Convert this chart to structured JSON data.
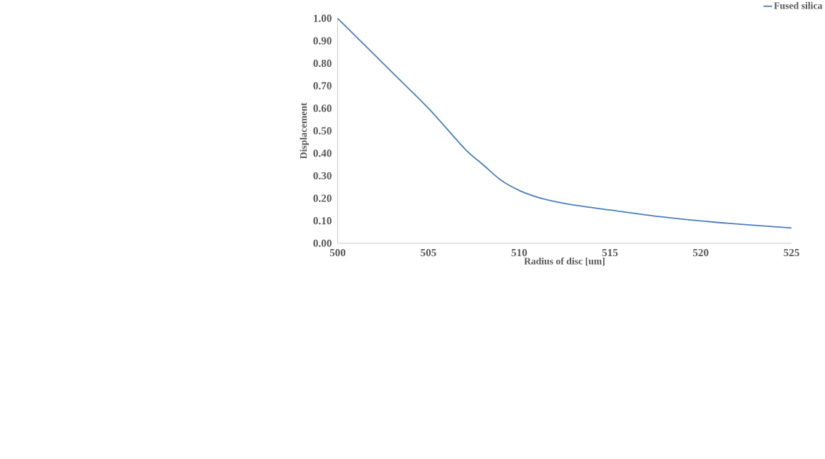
{
  "chart_data": {
    "type": "line",
    "xlabel": "Radius of disc [um]",
    "ylabel": "Displacement",
    "x": [
      500,
      501,
      503,
      505,
      507,
      508,
      509,
      510,
      511,
      512,
      513,
      515,
      518,
      521,
      525
    ],
    "series": [
      {
        "name": "Fused silica",
        "color": "#4a7ebb",
        "values": [
          1.0,
          0.92,
          0.76,
          0.6,
          0.42,
          0.35,
          0.28,
          0.235,
          0.205,
          0.185,
          0.17,
          0.148,
          0.116,
          0.092,
          0.068
        ]
      }
    ],
    "xlim": [
      500,
      525
    ],
    "xticks": [
      500,
      505,
      510,
      515,
      520,
      525
    ],
    "ylim": [
      0,
      1
    ],
    "yticks": [
      {
        "value": 0,
        "label": "0.00"
      },
      {
        "value": 0.1,
        "label": "0.10"
      },
      {
        "value": 0.2,
        "label": "0.20"
      },
      {
        "value": 0.3,
        "label": "0.30"
      },
      {
        "value": 0.4,
        "label": "0.40"
      },
      {
        "value": 0.5,
        "label": "0.50"
      },
      {
        "value": 0.6,
        "label": "0.60"
      },
      {
        "value": 0.7,
        "label": "0.70"
      },
      {
        "value": 0.8,
        "label": "0.80"
      },
      {
        "value": 0.9,
        "label": "0.90"
      },
      {
        "value": 1,
        "label": "1.00"
      }
    ],
    "grid": false,
    "legend": "top right",
    "marker": "none",
    "line_style": "solid"
  }
}
